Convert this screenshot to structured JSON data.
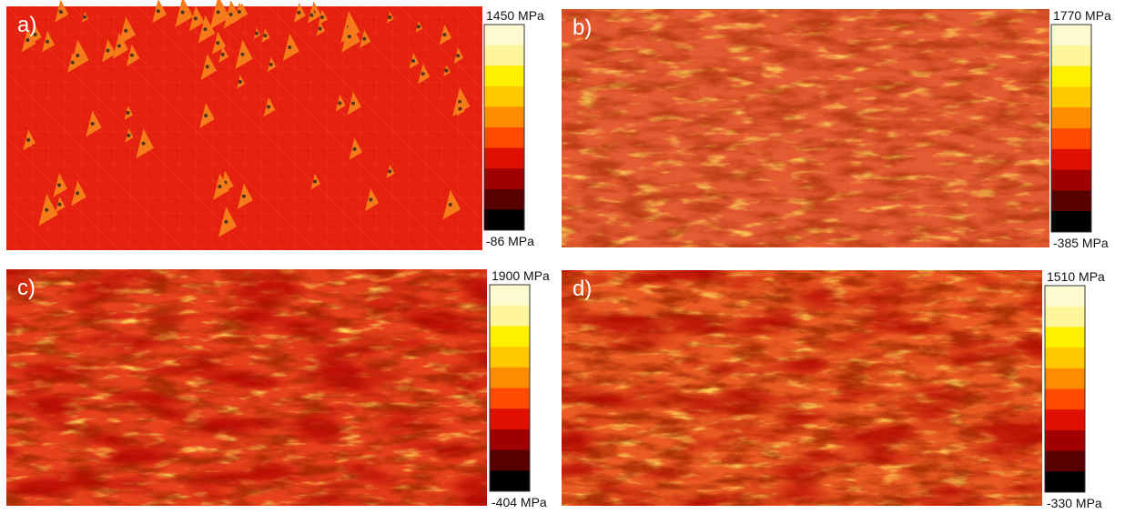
{
  "panels": [
    {
      "label": "a)",
      "max": "1450 MPa",
      "min": "-86 MPa"
    },
    {
      "label": "b)",
      "max": "1770 MPa",
      "min": "-385 MPa"
    },
    {
      "label": "c)",
      "max": "1900 MPa",
      "min": "-404 MPa"
    },
    {
      "label": "d)",
      "max": "1510 MPa",
      "min": "-330 MPa"
    }
  ]
}
